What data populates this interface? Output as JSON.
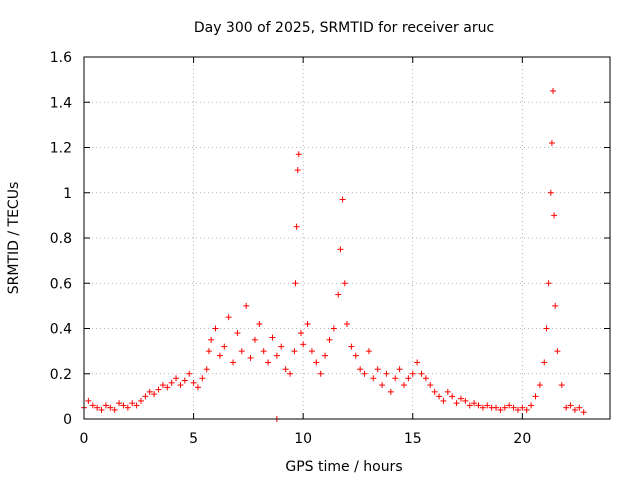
{
  "chart_data": {
    "type": "scatter",
    "title": "Day 300 of 2025, SRMTID for receiver aruc",
    "xlabel": "GPS time / hours",
    "ylabel": "SRMTID / TECUs",
    "xlim": [
      0,
      24
    ],
    "ylim": [
      0,
      1.6
    ],
    "xticks": [
      0,
      5,
      10,
      15,
      20
    ],
    "xtick_labels": [
      "0",
      "5",
      "10",
      "15",
      "20"
    ],
    "yticks": [
      0,
      0.2,
      0.4,
      0.6,
      0.8,
      1.0,
      1.2,
      1.4,
      1.6
    ],
    "ytick_labels": [
      "0",
      "0.2",
      "0.4",
      "0.6",
      "0.8",
      "1",
      "1.2",
      "1.4",
      "1.6"
    ],
    "grid": true,
    "marker": "+",
    "series": [
      {
        "name": "SRMTID",
        "color": "#ff0000",
        "x": [
          0.0,
          0.2,
          0.4,
          0.6,
          0.8,
          1.0,
          1.2,
          1.4,
          1.6,
          1.8,
          2.0,
          2.2,
          2.4,
          2.6,
          2.8,
          3.0,
          3.2,
          3.4,
          3.6,
          3.8,
          4.0,
          4.2,
          4.4,
          4.6,
          4.8,
          5.0,
          5.2,
          5.4,
          5.6,
          5.7,
          5.8,
          6.0,
          6.2,
          6.4,
          6.6,
          6.8,
          7.0,
          7.2,
          7.4,
          7.6,
          7.8,
          8.0,
          8.2,
          8.4,
          8.6,
          8.8,
          9.0,
          9.2,
          9.4,
          9.6,
          9.65,
          9.7,
          9.75,
          9.8,
          9.9,
          10.0,
          10.2,
          10.4,
          10.6,
          10.8,
          11.0,
          11.2,
          11.4,
          11.6,
          11.7,
          11.8,
          11.9,
          12.0,
          12.2,
          12.4,
          12.6,
          12.8,
          13.0,
          13.2,
          13.4,
          13.6,
          13.8,
          14.0,
          14.2,
          14.4,
          14.6,
          14.8,
          15.0,
          15.2,
          15.4,
          15.6,
          15.8,
          16.0,
          16.2,
          16.4,
          16.6,
          16.8,
          17.0,
          17.2,
          17.4,
          17.6,
          17.8,
          18.0,
          18.2,
          18.4,
          18.6,
          18.8,
          19.0,
          19.2,
          19.4,
          19.6,
          19.8,
          20.0,
          20.2,
          20.4,
          20.6,
          20.8,
          21.0,
          21.1,
          21.2,
          21.3,
          21.35,
          21.4,
          21.45,
          21.5,
          21.6,
          21.8,
          22.0,
          22.2,
          22.4,
          22.6,
          22.8,
          8.8
        ],
        "y": [
          0.05,
          0.08,
          0.06,
          0.05,
          0.04,
          0.06,
          0.05,
          0.04,
          0.07,
          0.06,
          0.05,
          0.07,
          0.06,
          0.08,
          0.1,
          0.12,
          0.11,
          0.13,
          0.15,
          0.14,
          0.16,
          0.18,
          0.15,
          0.17,
          0.2,
          0.16,
          0.14,
          0.18,
          0.22,
          0.3,
          0.35,
          0.4,
          0.28,
          0.32,
          0.45,
          0.25,
          0.38,
          0.3,
          0.5,
          0.27,
          0.35,
          0.42,
          0.3,
          0.25,
          0.36,
          0.28,
          0.32,
          0.22,
          0.2,
          0.3,
          0.6,
          0.85,
          1.1,
          1.17,
          0.38,
          0.33,
          0.42,
          0.3,
          0.25,
          0.2,
          0.28,
          0.35,
          0.4,
          0.55,
          0.75,
          0.97,
          0.6,
          0.42,
          0.32,
          0.28,
          0.22,
          0.2,
          0.3,
          0.18,
          0.22,
          0.15,
          0.2,
          0.12,
          0.18,
          0.22,
          0.15,
          0.18,
          0.2,
          0.25,
          0.2,
          0.18,
          0.15,
          0.12,
          0.1,
          0.08,
          0.12,
          0.1,
          0.07,
          0.09,
          0.08,
          0.06,
          0.07,
          0.06,
          0.05,
          0.06,
          0.05,
          0.05,
          0.04,
          0.05,
          0.06,
          0.05,
          0.04,
          0.05,
          0.04,
          0.06,
          0.1,
          0.15,
          0.25,
          0.4,
          0.6,
          1.0,
          1.22,
          1.45,
          0.9,
          0.5,
          0.3,
          0.15,
          0.05,
          0.06,
          0.04,
          0.05,
          0.03,
          0.0
        ]
      }
    ]
  }
}
